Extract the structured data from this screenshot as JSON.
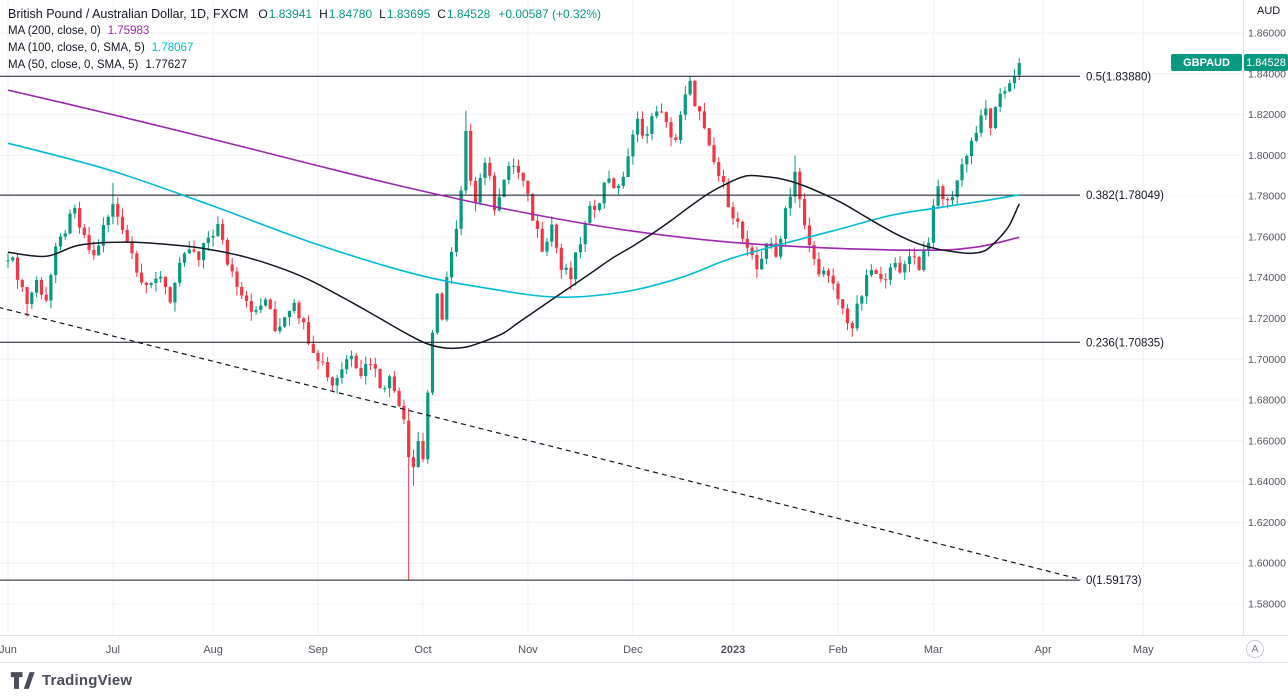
{
  "header": {
    "symbol_title": "British Pound / Australian Dollar, 1D, FXCM",
    "ohlc": {
      "o_label": "O",
      "o": "1.83941",
      "h_label": "H",
      "h": "1.84780",
      "l_label": "L",
      "l": "1.83695",
      "c_label": "C",
      "c": "1.84528",
      "change": "+0.00587 (+0.32%)",
      "color": "#089981"
    },
    "indicators": [
      {
        "label": "MA (200, close, 0)",
        "value": "1.75983",
        "color": "#9c27b0"
      },
      {
        "label": "MA (100, close, 0, SMA, 5)",
        "value": "1.78067",
        "color": "#00bcd4"
      },
      {
        "label": "MA (50, close, 0, SMA, 5)",
        "value": "1.77627",
        "color": "#131722"
      }
    ]
  },
  "axis": {
    "currency_label": "AUD",
    "corner_button": "A"
  },
  "price_badge": {
    "symbol": "GBPAUD",
    "price": "1.84528",
    "color": "#089981"
  },
  "footer": {
    "brand": "TradingView"
  },
  "chart_data": {
    "type": "candlestick",
    "symbol": "GBPAUD",
    "timeframe": "1D",
    "title": "British Pound / Australian Dollar, 1D, FXCM",
    "ylim": [
      1.5648,
      1.8762
    ],
    "grid": true,
    "colors": {
      "up": "#089981",
      "down": "#f23645",
      "ma200": "#9c27b0",
      "ma100": "#00bcd4",
      "ma50": "#131722"
    },
    "price_ticks": [
      1.86,
      1.84,
      1.82,
      1.8,
      1.78,
      1.76,
      1.74,
      1.72,
      1.7,
      1.68,
      1.66,
      1.64,
      1.62,
      1.6,
      1.58
    ],
    "months": [
      {
        "label": "Jun",
        "day": 0
      },
      {
        "label": "Jul",
        "day": 22
      },
      {
        "label": "Aug",
        "day": 43
      },
      {
        "label": "Sep",
        "day": 65
      },
      {
        "label": "Oct",
        "day": 87
      },
      {
        "label": "Nov",
        "day": 109
      },
      {
        "label": "Dec",
        "day": 131
      },
      {
        "label": "2023",
        "day": 152,
        "bold": true
      },
      {
        "label": "Feb",
        "day": 174
      },
      {
        "label": "Mar",
        "day": 194
      },
      {
        "label": "Apr",
        "day": 217
      },
      {
        "label": "May",
        "day": 238
      }
    ],
    "fib_levels": [
      {
        "label": "0.5(1.83880)",
        "price": 1.8388
      },
      {
        "label": "0.382(1.78049)",
        "price": 1.78049
      },
      {
        "label": "0.236(1.70835)",
        "price": 1.70835
      },
      {
        "label": "0(1.59173)",
        "price": 1.59173
      }
    ],
    "trendline": {
      "style": "dashed",
      "from": {
        "day": -2,
        "price": 1.7255
      },
      "to": {
        "day": 225,
        "price": 1.592
      }
    },
    "last_candle": {
      "o": 1.83941,
      "h": 1.8478,
      "l": 1.83695,
      "c": 1.84528
    },
    "price_path": [
      [
        0,
        1.752
      ],
      [
        2,
        1.742
      ],
      [
        4,
        1.728
      ],
      [
        6,
        1.738
      ],
      [
        8,
        1.73
      ],
      [
        10,
        1.752
      ],
      [
        12,
        1.764
      ],
      [
        14,
        1.772
      ],
      [
        16,
        1.758
      ],
      [
        18,
        1.75
      ],
      [
        20,
        1.764
      ],
      [
        22,
        1.775
      ],
      [
        24,
        1.766
      ],
      [
        26,
        1.752
      ],
      [
        28,
        1.74
      ],
      [
        30,
        1.734
      ],
      [
        32,
        1.742
      ],
      [
        34,
        1.73
      ],
      [
        36,
        1.744
      ],
      [
        38,
        1.754
      ],
      [
        40,
        1.748
      ],
      [
        42,
        1.76
      ],
      [
        44,
        1.765
      ],
      [
        46,
        1.748
      ],
      [
        48,
        1.738
      ],
      [
        50,
        1.73
      ],
      [
        52,
        1.722
      ],
      [
        54,
        1.73
      ],
      [
        56,
        1.714
      ],
      [
        58,
        1.722
      ],
      [
        60,
        1.73
      ],
      [
        62,
        1.716
      ],
      [
        64,
        1.706
      ],
      [
        66,
        1.698
      ],
      [
        68,
        1.688
      ],
      [
        70,
        1.696
      ],
      [
        72,
        1.704
      ],
      [
        74,
        1.694
      ],
      [
        76,
        1.7
      ],
      [
        78,
        1.688
      ],
      [
        80,
        1.69
      ],
      [
        82,
        1.68
      ],
      [
        83,
        1.672
      ],
      [
        84,
        1.656
      ],
      [
        85,
        1.648
      ],
      [
        86,
        1.66
      ],
      [
        87,
        1.652
      ],
      [
        88,
        1.684
      ],
      [
        89,
        1.71
      ],
      [
        90,
        1.73
      ],
      [
        91,
        1.722
      ],
      [
        92,
        1.74
      ],
      [
        94,
        1.762
      ],
      [
        96,
        1.8
      ],
      [
        98,
        1.78
      ],
      [
        100,
        1.798
      ],
      [
        102,
        1.776
      ],
      [
        104,
        1.788
      ],
      [
        106,
        1.796
      ],
      [
        108,
        1.786
      ],
      [
        110,
        1.77
      ],
      [
        112,
        1.756
      ],
      [
        114,
        1.766
      ],
      [
        116,
        1.744
      ],
      [
        118,
        1.74
      ],
      [
        120,
        1.758
      ],
      [
        122,
        1.772
      ],
      [
        124,
        1.78
      ],
      [
        126,
        1.79
      ],
      [
        128,
        1.782
      ],
      [
        130,
        1.8
      ],
      [
        132,
        1.816
      ],
      [
        134,
        1.81
      ],
      [
        136,
        1.824
      ],
      [
        138,
        1.814
      ],
      [
        140,
        1.808
      ],
      [
        142,
        1.828
      ],
      [
        143,
        1.834
      ],
      [
        145,
        1.82
      ],
      [
        147,
        1.802
      ],
      [
        149,
        1.79
      ],
      [
        151,
        1.778
      ],
      [
        153,
        1.766
      ],
      [
        155,
        1.752
      ],
      [
        157,
        1.744
      ],
      [
        159,
        1.758
      ],
      [
        161,
        1.75
      ],
      [
        163,
        1.774
      ],
      [
        165,
        1.79
      ],
      [
        167,
        1.764
      ],
      [
        169,
        1.748
      ],
      [
        171,
        1.742
      ],
      [
        173,
        1.735
      ],
      [
        175,
        1.724
      ],
      [
        177,
        1.716
      ],
      [
        179,
        1.732
      ],
      [
        181,
        1.744
      ],
      [
        183,
        1.737
      ],
      [
        185,
        1.748
      ],
      [
        187,
        1.741
      ],
      [
        189,
        1.753
      ],
      [
        191,
        1.746
      ],
      [
        193,
        1.76
      ],
      [
        195,
        1.784
      ],
      [
        197,
        1.776
      ],
      [
        199,
        1.788
      ],
      [
        201,
        1.802
      ],
      [
        203,
        1.812
      ],
      [
        205,
        1.822
      ],
      [
        206,
        1.815
      ],
      [
        208,
        1.827
      ],
      [
        210,
        1.837
      ],
      [
        211,
        1.8405
      ],
      [
        212,
        1.84528
      ]
    ],
    "special_candles": [
      {
        "day": 4,
        "l": 1.721
      },
      {
        "day": 22,
        "h": 1.7865
      },
      {
        "day": 84,
        "o": 1.67,
        "h": 1.676,
        "l": 1.59173,
        "c": 1.652
      },
      {
        "day": 85,
        "l": 1.638
      },
      {
        "day": 96,
        "h": 1.822,
        "c": 1.812
      },
      {
        "day": 118,
        "l": 1.734
      },
      {
        "day": 143,
        "h": 1.8388
      },
      {
        "day": 165,
        "h": 1.8,
        "c": 1.792
      },
      {
        "day": 177,
        "l": 1.711
      },
      {
        "day": 212,
        "o": 1.83941,
        "h": 1.8478,
        "l": 1.83695,
        "c": 1.84528
      }
    ],
    "ma200_path": [
      [
        0,
        1.832
      ],
      [
        21,
        1.8205
      ],
      [
        42,
        1.8085
      ],
      [
        64,
        1.7955
      ],
      [
        85,
        1.7835
      ],
      [
        107,
        1.7725
      ],
      [
        129,
        1.7635
      ],
      [
        151,
        1.7575
      ],
      [
        173,
        1.7545
      ],
      [
        193,
        1.7535
      ],
      [
        203,
        1.755
      ],
      [
        212,
        1.75983
      ]
    ],
    "ma100_path": [
      [
        0,
        1.806
      ],
      [
        21,
        1.793
      ],
      [
        42,
        1.776
      ],
      [
        64,
        1.757
      ],
      [
        85,
        1.742
      ],
      [
        100,
        1.735
      ],
      [
        115,
        1.7305
      ],
      [
        129,
        1.733
      ],
      [
        141,
        1.74
      ],
      [
        151,
        1.749
      ],
      [
        163,
        1.757
      ],
      [
        173,
        1.763
      ],
      [
        185,
        1.7705
      ],
      [
        194,
        1.774
      ],
      [
        204,
        1.7775
      ],
      [
        212,
        1.78067
      ]
    ],
    "ma50_path": [
      [
        0,
        1.7525
      ],
      [
        8,
        1.7505
      ],
      [
        15,
        1.756
      ],
      [
        25,
        1.7575
      ],
      [
        35,
        1.756
      ],
      [
        42,
        1.754
      ],
      [
        50,
        1.75
      ],
      [
        58,
        1.744
      ],
      [
        64,
        1.738
      ],
      [
        72,
        1.728
      ],
      [
        78,
        1.72
      ],
      [
        84,
        1.712
      ],
      [
        88,
        1.7075
      ],
      [
        92,
        1.7055
      ],
      [
        96,
        1.706
      ],
      [
        100,
        1.709
      ],
      [
        104,
        1.713
      ],
      [
        107,
        1.718
      ],
      [
        112,
        1.726
      ],
      [
        117,
        1.734
      ],
      [
        122,
        1.742
      ],
      [
        127,
        1.75
      ],
      [
        131,
        1.7555
      ],
      [
        135,
        1.7615
      ],
      [
        139,
        1.768
      ],
      [
        143,
        1.775
      ],
      [
        147,
        1.7815
      ],
      [
        151,
        1.7865
      ],
      [
        155,
        1.79
      ],
      [
        159,
        1.7895
      ],
      [
        163,
        1.788
      ],
      [
        167,
        1.785
      ],
      [
        171,
        1.781
      ],
      [
        175,
        1.7765
      ],
      [
        179,
        1.771
      ],
      [
        183,
        1.7655
      ],
      [
        187,
        1.7605
      ],
      [
        191,
        1.7565
      ],
      [
        195,
        1.754
      ],
      [
        199,
        1.7525
      ],
      [
        202,
        1.752
      ],
      [
        205,
        1.7535
      ],
      [
        208,
        1.76
      ],
      [
        210,
        1.766
      ],
      [
        212,
        1.77627
      ]
    ],
    "last_values": {
      "ma200": 1.75983,
      "ma100": 1.78067,
      "ma50": 1.77627
    }
  }
}
